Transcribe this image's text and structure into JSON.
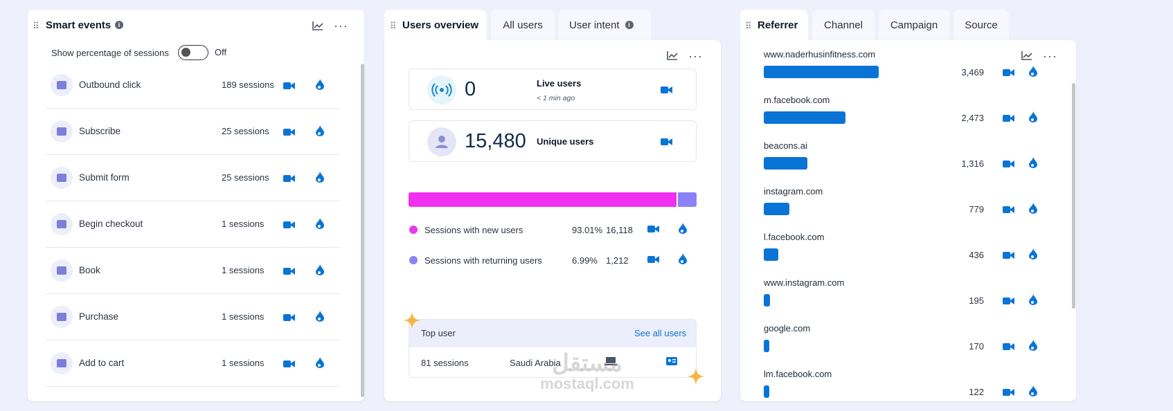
{
  "smart_events": {
    "title": "Smart events",
    "info_glyph": "i",
    "toggle_label": "Show percentage of sessions",
    "toggle_state": "Off",
    "rows": [
      {
        "label": "Outbound click",
        "count": "189 sessions"
      },
      {
        "label": "Subscribe",
        "count": "25 sessions"
      },
      {
        "label": "Submit form",
        "count": "25 sessions"
      },
      {
        "label": "Begin checkout",
        "count": "1 sessions"
      },
      {
        "label": "Book",
        "count": "1 sessions"
      },
      {
        "label": "Purchase",
        "count": "1 sessions"
      },
      {
        "label": "Add to cart",
        "count": "1 sessions"
      }
    ]
  },
  "users_overview": {
    "tabs": [
      "Users overview",
      "All users",
      "User intent"
    ],
    "live": {
      "value": "0",
      "label": "Live users",
      "sub": "< 1 min ago"
    },
    "unique": {
      "value": "15,480",
      "label": "Unique users"
    },
    "split_bar": {
      "new_fraction": 0.9301,
      "new_color": "#f02ff0",
      "returning_color": "#8b82f5"
    },
    "legend": [
      {
        "label": "Sessions with new users",
        "pct": "93.01%",
        "count": "16,118",
        "color": "#e53be8"
      },
      {
        "label": "Sessions with returning users",
        "pct": "6.99%",
        "count": "1,212",
        "color": "#8b82f5"
      }
    ],
    "top_user": {
      "title": "Top user",
      "link": "See all users",
      "sessions": "81 sessions",
      "country": "Saudi Arabia"
    }
  },
  "referrer": {
    "tabs": [
      "Referrer",
      "Channel",
      "Campaign",
      "Source"
    ],
    "bar_color": "#0a74d6",
    "rows": [
      {
        "name": "www.naderhusinfitness.com",
        "value": "3,469",
        "n": 3469
      },
      {
        "name": "m.facebook.com",
        "value": "2,473",
        "n": 2473
      },
      {
        "name": "beacons.ai",
        "value": "1,316",
        "n": 1316
      },
      {
        "name": "instagram.com",
        "value": "779",
        "n": 779
      },
      {
        "name": "l.facebook.com",
        "value": "436",
        "n": 436
      },
      {
        "name": "www.instagram.com",
        "value": "195",
        "n": 195
      },
      {
        "name": "google.com",
        "value": "170",
        "n": 170
      },
      {
        "name": "lm.facebook.com",
        "value": "122",
        "n": 122
      }
    ]
  },
  "watermark": {
    "arabic": "مستقل",
    "latin": "mostaql.com"
  },
  "colors": {
    "accent": "#0a74d6",
    "spark": "#f5b544"
  }
}
